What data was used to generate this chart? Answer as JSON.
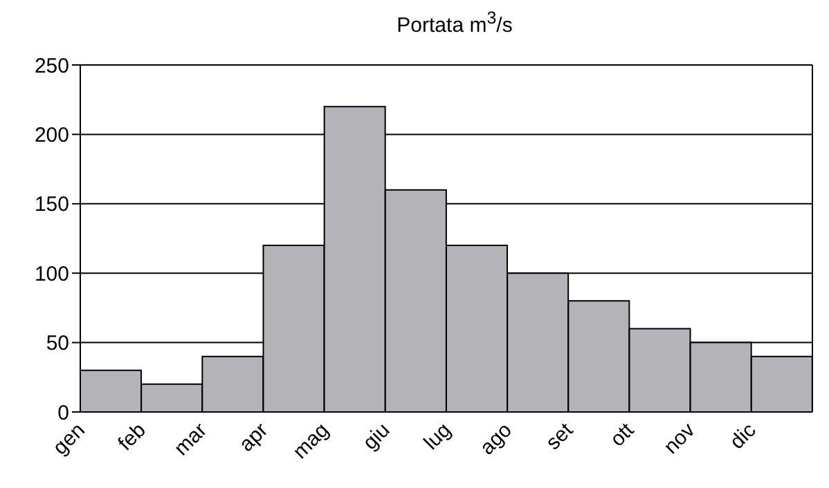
{
  "chart_data": {
    "type": "bar",
    "title": "Portata m$^{3}$/s",
    "categories": [
      "gen",
      "feb",
      "mar",
      "apr",
      "mag",
      "giu",
      "lug",
      "ago",
      "set",
      "ott",
      "nov",
      "dic"
    ],
    "values": [
      30,
      20,
      40,
      120,
      220,
      160,
      120,
      100,
      80,
      60,
      50,
      40
    ],
    "color": "#b4b4b8",
    "ylim": [
      0,
      250
    ],
    "yticks": [
      0,
      50,
      100,
      150,
      200,
      250
    ],
    "grid": "y"
  }
}
